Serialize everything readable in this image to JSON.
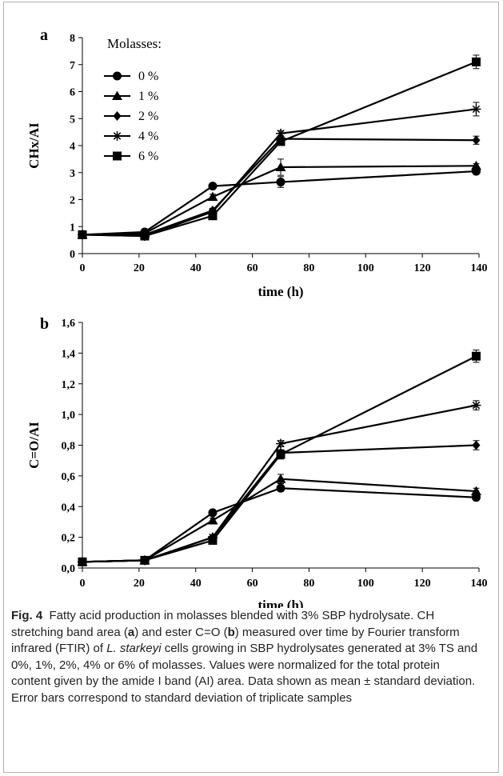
{
  "chart_data": [
    {
      "type": "line",
      "panel_label": "a",
      "ylabel": "CHx/AI",
      "xlabel": "time (h)",
      "xlim": [
        0,
        140
      ],
      "ylim": [
        0,
        8
      ],
      "xticks": [
        0,
        20,
        40,
        60,
        80,
        100,
        120,
        140
      ],
      "yticks": [
        "0",
        "1",
        "2",
        "3",
        "4",
        "5",
        "6",
        "7",
        "8"
      ],
      "x": [
        0,
        22,
        46,
        70,
        139
      ],
      "legend_title": "Molasses:",
      "legend_position": "top-left",
      "series": [
        {
          "name": "0 %",
          "marker": "circle",
          "values": [
            0.7,
            0.8,
            2.5,
            2.65,
            3.05
          ],
          "errors": [
            0.05,
            0.05,
            0.08,
            0.2,
            0.1
          ]
        },
        {
          "name": "1 %",
          "marker": "triangle",
          "values": [
            0.7,
            0.75,
            2.1,
            3.2,
            3.25
          ],
          "errors": [
            0.05,
            0.05,
            0.1,
            0.3,
            0.08
          ]
        },
        {
          "name": "2 %",
          "marker": "diamond",
          "values": [
            0.7,
            0.7,
            1.6,
            4.25,
            4.2
          ],
          "errors": [
            0.05,
            0.05,
            0.08,
            0.1,
            0.15
          ]
        },
        {
          "name": "4 %",
          "marker": "star",
          "values": [
            0.7,
            0.65,
            1.55,
            4.45,
            5.35
          ],
          "errors": [
            0.05,
            0.05,
            0.08,
            0.1,
            0.25
          ]
        },
        {
          "name": "6 %",
          "marker": "square",
          "values": [
            0.7,
            0.65,
            1.4,
            4.15,
            7.1
          ],
          "errors": [
            0.05,
            0.05,
            0.08,
            0.1,
            0.25
          ]
        }
      ]
    },
    {
      "type": "line",
      "panel_label": "b",
      "ylabel": "C=O/AI",
      "xlabel": "time (h)",
      "xlim": [
        0,
        140
      ],
      "ylim": [
        0,
        1.6
      ],
      "xticks": [
        0,
        20,
        40,
        60,
        80,
        100,
        120,
        140
      ],
      "yticks": [
        "0,0",
        "0,2",
        "0,4",
        "0,6",
        "0,8",
        "1,0",
        "1,2",
        "1,4",
        "1,6"
      ],
      "x": [
        0,
        22,
        46,
        70,
        139
      ],
      "series": [
        {
          "name": "0 %",
          "marker": "circle",
          "values": [
            0.04,
            0.05,
            0.36,
            0.52,
            0.46
          ],
          "errors": [
            0.01,
            0.01,
            0.015,
            0.02,
            0.02
          ]
        },
        {
          "name": "1 %",
          "marker": "triangle",
          "values": [
            0.04,
            0.05,
            0.31,
            0.58,
            0.5
          ],
          "errors": [
            0.01,
            0.01,
            0.015,
            0.03,
            0.02
          ]
        },
        {
          "name": "2 %",
          "marker": "diamond",
          "values": [
            0.04,
            0.05,
            0.2,
            0.75,
            0.8
          ],
          "errors": [
            0.01,
            0.01,
            0.015,
            0.02,
            0.03
          ]
        },
        {
          "name": "4 %",
          "marker": "star",
          "values": [
            0.04,
            0.05,
            0.2,
            0.81,
            1.06
          ],
          "errors": [
            0.01,
            0.01,
            0.015,
            0.02,
            0.03
          ]
        },
        {
          "name": "6 %",
          "marker": "square",
          "values": [
            0.04,
            0.05,
            0.18,
            0.74,
            1.38
          ],
          "errors": [
            0.01,
            0.01,
            0.015,
            0.03,
            0.04
          ]
        }
      ]
    }
  ],
  "caption": {
    "label": "Fig. 4",
    "text_1": "Fatty acid production in molasses blended with 3% SBP hydrolysate. CH stretching band area (",
    "bold_a": "a",
    "text_2": ") and ester C=O (",
    "bold_b": "b",
    "text_3": ") measured over time by Fourier transform infrared (FTIR) of ",
    "italic_species": "L. starkeyi",
    "text_4": " cells growing in SBP hydrolysates generated at 3% TS and 0%, 1%, 2%, 4% or 6% of molasses. Values were normalized for the total protein content given by the amide I band (AI) area. Data shown as mean ± standard deviation. Error bars correspond to standard deviation of triplicate samples"
  }
}
